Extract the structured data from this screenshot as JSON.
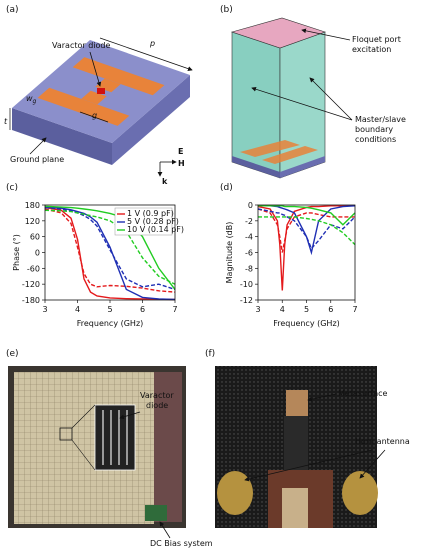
{
  "panel_labels": [
    "(a)",
    "(b)",
    "(c)",
    "(d)",
    "(e)",
    "(f)"
  ],
  "a": {
    "varactor": "Varactor diode",
    "p": "p",
    "w": "w",
    "w_sub": "g",
    "g": "g",
    "t": "t",
    "ground": "Ground plane",
    "E": "E",
    "H": "H",
    "k": "k"
  },
  "b": {
    "floquet": [
      "Floquet port",
      "excitation"
    ],
    "boundary": [
      "Master/slave",
      "boundary",
      "conditions"
    ]
  },
  "e": {
    "varactor": [
      "Varactor",
      "diode"
    ],
    "bias": "DC Bias system"
  },
  "f": {
    "metasurface": "Metasurface",
    "horn": "Horn antenna"
  },
  "chart_data": [
    {
      "type": "line",
      "x_label": "Frequency (GHz)",
      "y_label": "Phase (°)",
      "x": [
        3,
        3.5,
        3.8,
        4,
        4.2,
        4.4,
        4.6,
        5,
        5.5,
        6,
        6.5,
        7
      ],
      "xlim": [
        3,
        7
      ],
      "xticks": [
        3,
        4,
        5,
        6,
        7
      ],
      "ylim": [
        -180,
        180
      ],
      "yticks": [
        -180,
        -120,
        -60,
        0,
        60,
        120,
        180
      ],
      "legend": "upper right",
      "series": [
        {
          "name": "1 V (0.9 pF)",
          "color": "#e41a1c",
          "values": [
            170,
            160,
            130,
            50,
            -100,
            -150,
            -165,
            -172,
            -175,
            -176,
            -177,
            -178
          ]
        },
        {
          "color": "#e41a1c",
          "dash": true,
          "values": [
            165,
            150,
            110,
            20,
            -80,
            -120,
            -130,
            -125,
            -128,
            -135,
            -145,
            -150
          ]
        },
        {
          "name": "5 V (0.28 pF)",
          "color": "#1f2fb4",
          "values": [
            172,
            168,
            162,
            155,
            148,
            135,
            115,
            20,
            -140,
            -170,
            -176,
            -178
          ]
        },
        {
          "color": "#1f2fb4",
          "dash": true,
          "values": [
            170,
            165,
            158,
            150,
            140,
            125,
            100,
            10,
            -100,
            -130,
            -120,
            -140
          ]
        },
        {
          "name": "10 V (0.14 pF)",
          "color": "#22cc22",
          "values": [
            175,
            172,
            170,
            168,
            165,
            162,
            158,
            148,
            130,
            60,
            -60,
            -140
          ]
        },
        {
          "color": "#22cc22",
          "dash": true,
          "values": [
            160,
            158,
            155,
            150,
            145,
            140,
            135,
            120,
            80,
            -20,
            -90,
            -120
          ]
        }
      ]
    },
    {
      "type": "line",
      "x_label": "Frequency (GHz)",
      "y_label": "Magnitude (dB)",
      "x": [
        3,
        3.5,
        3.8,
        3.9,
        4,
        4.1,
        4.2,
        4.5,
        5,
        5.2,
        5.5,
        6,
        6.5,
        7
      ],
      "xlim": [
        3,
        7
      ],
      "xticks": [
        3,
        4,
        5,
        6,
        7
      ],
      "ylim": [
        -12,
        0
      ],
      "yticks": [
        -12,
        -10,
        -8,
        -6,
        -4,
        -2,
        0
      ],
      "series": [
        {
          "color": "#e41a1c",
          "values": [
            -0.2,
            -0.5,
            -2,
            -5,
            -10.8,
            -5,
            -2.5,
            -0.8,
            -0.3,
            -0.2,
            -0.2,
            -0.1,
            -0.1,
            -0.1
          ]
        },
        {
          "color": "#e41a1c",
          "dash": true,
          "values": [
            -0.5,
            -1,
            -2.5,
            -4,
            -6,
            -4.5,
            -3,
            -1.5,
            -1,
            -1,
            -1.2,
            -1.5,
            -1.5,
            -1.5
          ]
        },
        {
          "color": "#1f2fb4",
          "values": [
            -0.1,
            -0.1,
            -0.2,
            -0.3,
            -0.4,
            -0.5,
            -0.6,
            -1,
            -4,
            -6,
            -2,
            -0.5,
            -0.2,
            -0.1
          ]
        },
        {
          "color": "#1f2fb4",
          "dash": true,
          "values": [
            -0.5,
            -0.8,
            -1,
            -1,
            -1.2,
            -1.3,
            -1.5,
            -2,
            -4,
            -5.5,
            -4.5,
            -2.5,
            -3,
            -1.5
          ]
        },
        {
          "color": "#22cc22",
          "values": [
            -0.1,
            -0.1,
            -0.1,
            -0.1,
            -0.1,
            -0.2,
            -0.2,
            -0.2,
            -0.3,
            -0.4,
            -0.6,
            -1,
            -2.5,
            -1
          ]
        },
        {
          "color": "#22cc22",
          "dash": true,
          "values": [
            -1.5,
            -1.5,
            -1.5,
            -1.5,
            -1.5,
            -1.5,
            -1.5,
            -1.5,
            -1.7,
            -1.8,
            -2,
            -2.5,
            -3.5,
            -5
          ]
        }
      ]
    }
  ]
}
